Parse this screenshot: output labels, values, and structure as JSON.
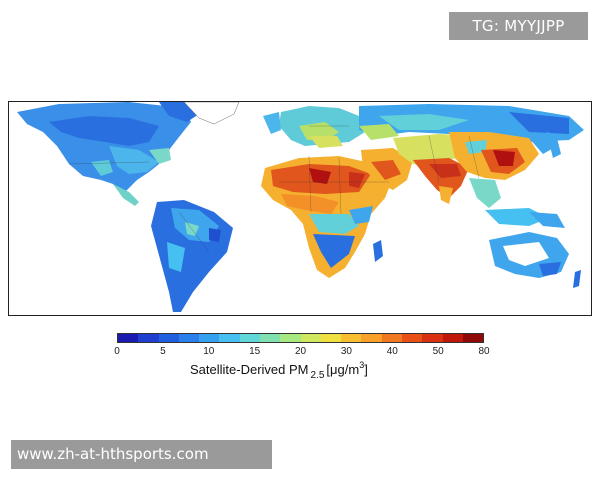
{
  "watermark_top": "TG: MYYJJPP",
  "watermark_bottom": "www.zh-at-hthsports.com",
  "colorbar": {
    "ticks": [
      "0",
      "5",
      "10",
      "15",
      "20",
      "30",
      "40",
      "50",
      "80"
    ],
    "title_prefix": "Satellite-Derived PM",
    "title_subscript": "2.5",
    "title_unit_open": "[μg/m",
    "title_unit_sup": "3",
    "title_unit_close": "]",
    "colors": [
      "#1b1bb0",
      "#1f3fd0",
      "#1f5fe0",
      "#2a80e8",
      "#35a0f0",
      "#45c0f0",
      "#5fd6d8",
      "#80e0b0",
      "#a8e880",
      "#d0e860",
      "#f0e040",
      "#f8c030",
      "#f8a028",
      "#f07820",
      "#e85018",
      "#d83010",
      "#c01808",
      "#900808"
    ]
  },
  "map": {
    "land_colors": {
      "low": "#2a6fe0",
      "low_mid": "#3fa6ee",
      "mid": "#62d0d8",
      "mid_high": "#b7e06a",
      "high": "#f6b030",
      "very_high": "#e0561c",
      "extreme": "#b01010"
    }
  }
}
